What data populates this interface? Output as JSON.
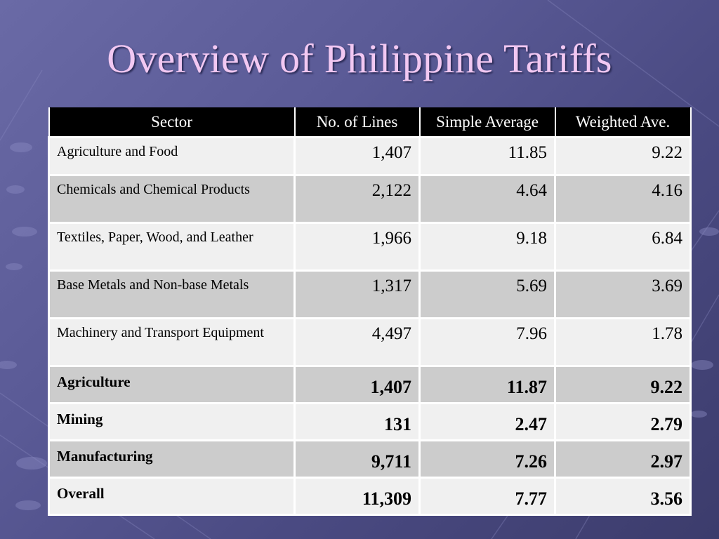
{
  "slide": {
    "title": "Overview of Philippine Tariffs"
  },
  "table": {
    "headers": [
      "Sector",
      "No. of Lines",
      "Simple Average",
      "Weighted Ave."
    ],
    "rows": [
      [
        "Agriculture and Food",
        "1,407",
        "11.85",
        "9.22"
      ],
      [
        "Chemicals and Chemical Products",
        "2,122",
        "4.64",
        "4.16"
      ],
      [
        "Textiles, Paper, Wood, and Leather",
        "1,966",
        "9.18",
        "6.84"
      ],
      [
        "Base Metals and Non-base Metals",
        "1,317",
        "5.69",
        "3.69"
      ],
      [
        "Machinery and Transport Equipment",
        "4,497",
        "7.96",
        "1.78"
      ],
      [
        "Agriculture",
        "1,407",
        "11.87",
        "9.22"
      ],
      [
        "Mining",
        "131",
        "2.47",
        "2.79"
      ],
      [
        "Manufacturing",
        "9,711",
        "7.26",
        "2.97"
      ],
      [
        "Overall",
        "11,309",
        "7.77",
        "3.56"
      ]
    ]
  },
  "colors": {
    "background": "#5a5a96",
    "title": "#f2c8f2",
    "header_bg": "#000000",
    "row_light": "#f0f0f0",
    "row_dark": "#cccccc"
  }
}
